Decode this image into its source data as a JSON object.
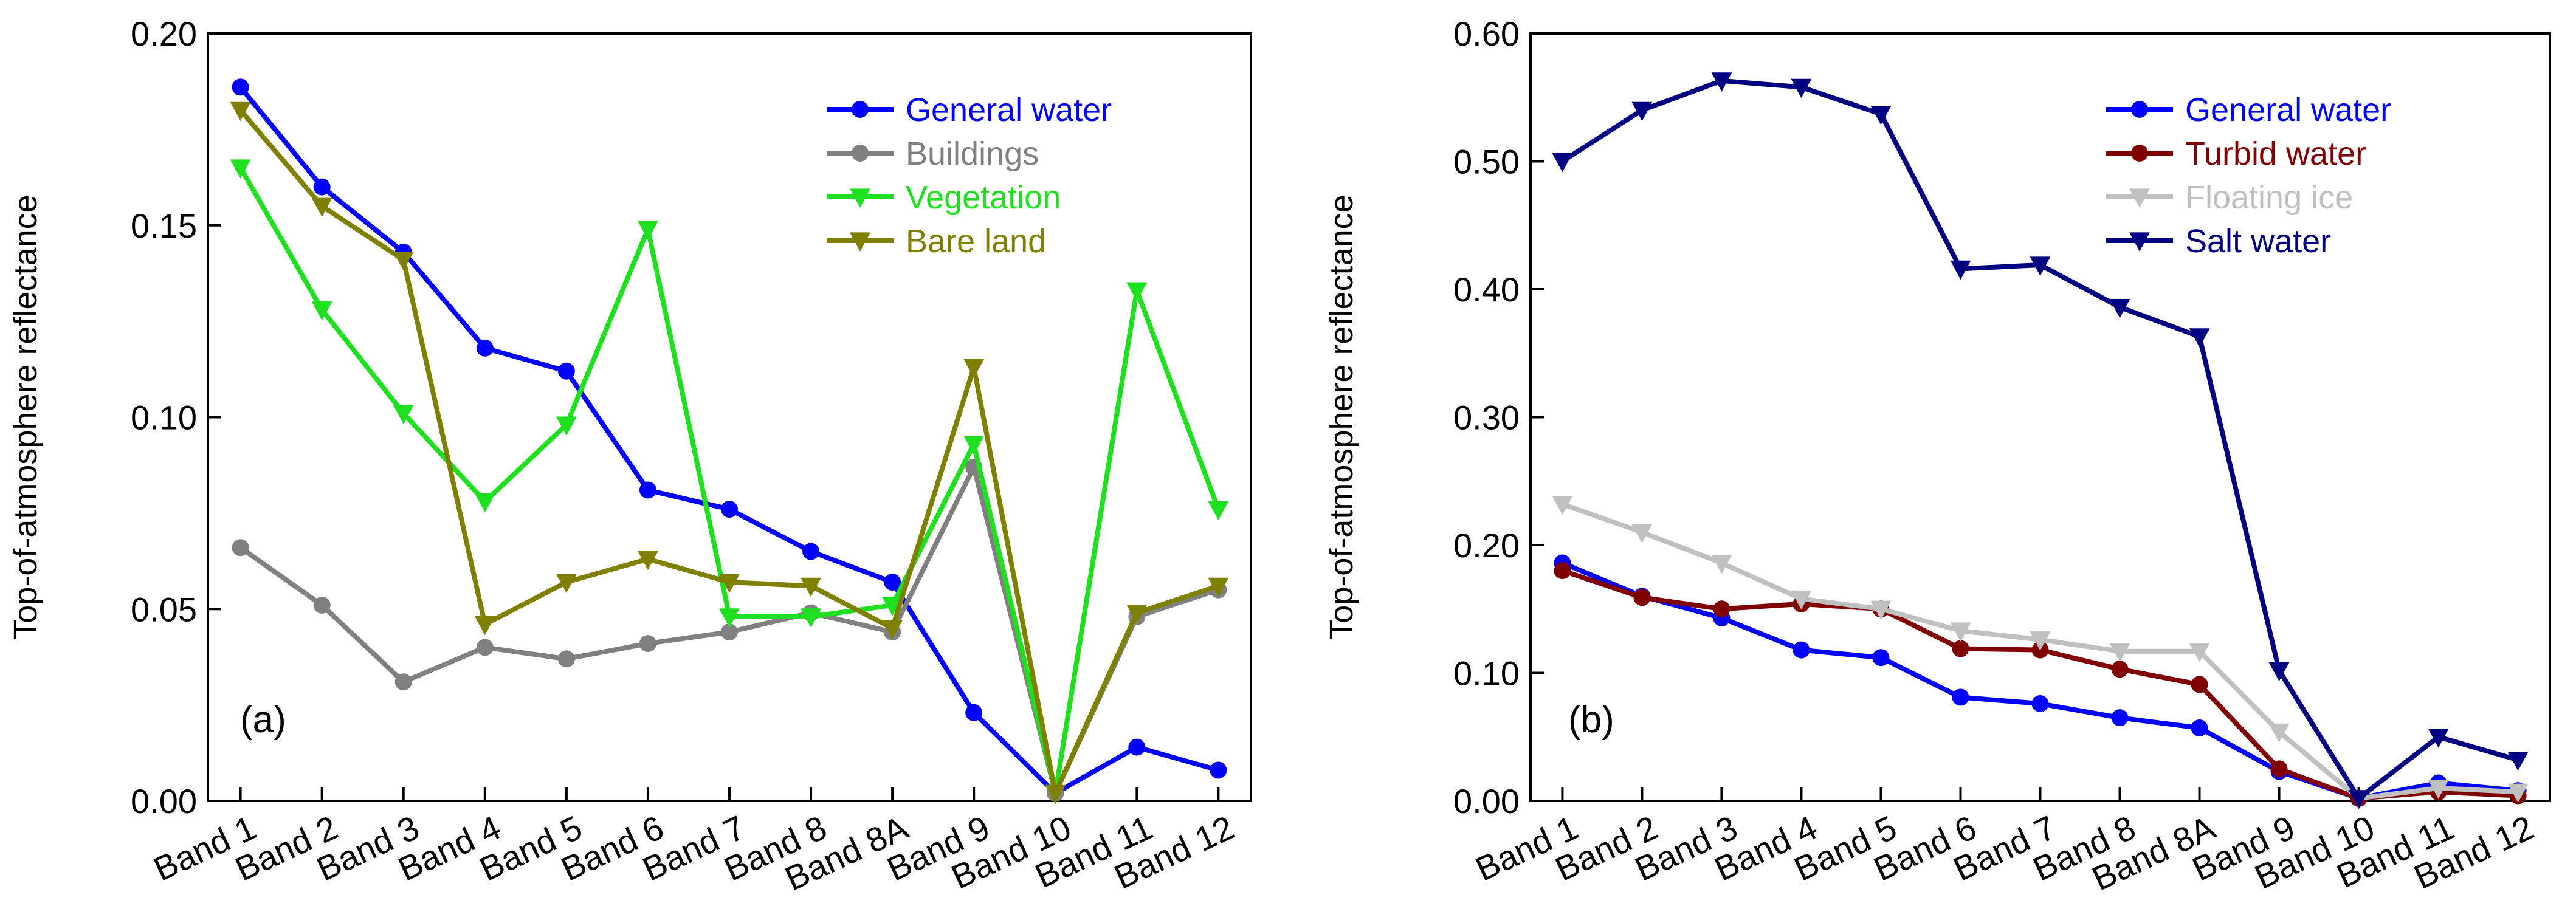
{
  "chart_data": [
    {
      "type": "line",
      "panel_label": "(a)",
      "title": "",
      "xlabel": "",
      "ylabel": "Top-of-atmosphere reflectance",
      "categories": [
        "Band 1",
        "Band 2",
        "Band 3",
        "Band 4",
        "Band 5",
        "Band 6",
        "Band 7",
        "Band 8",
        "Band 8A",
        "Band 9",
        "Band 10",
        "Band 11",
        "Band 12"
      ],
      "ylim": [
        0,
        0.2
      ],
      "yticks": [
        0,
        0.05,
        0.1,
        0.15,
        0.2
      ],
      "ytick_labels": [
        "0.00",
        "0.05",
        "0.10",
        "0.15",
        "0.20"
      ],
      "legend_position": "top-right",
      "series": [
        {
          "name": "General water",
          "color": "#0000ff",
          "marker": "circle",
          "values": [
            0.186,
            0.16,
            0.143,
            0.118,
            0.112,
            0.081,
            0.076,
            0.065,
            0.057,
            0.023,
            0.002,
            0.014,
            0.008
          ]
        },
        {
          "name": "Buildings",
          "color": "#808080",
          "marker": "circle",
          "values": [
            0.066,
            0.051,
            0.031,
            0.04,
            0.037,
            0.041,
            0.044,
            0.049,
            0.044,
            0.087,
            0.002,
            0.048,
            0.055
          ]
        },
        {
          "name": "Vegetation",
          "color": "#1ee01e",
          "marker": "triangle-down",
          "values": [
            0.165,
            0.128,
            0.101,
            0.078,
            0.098,
            0.149,
            0.048,
            0.048,
            0.051,
            0.093,
            0.002,
            0.133,
            0.076
          ]
        },
        {
          "name": "Bare land",
          "color": "#808000",
          "marker": "triangle-down",
          "values": [
            0.18,
            0.155,
            0.141,
            0.046,
            0.057,
            0.063,
            0.057,
            0.056,
            0.045,
            0.113,
            0.002,
            0.049,
            0.056
          ]
        }
      ]
    },
    {
      "type": "line",
      "panel_label": "(b)",
      "title": "",
      "xlabel": "",
      "ylabel": "Top-of-atmosphere reflectance",
      "categories": [
        "Band 1",
        "Band 2",
        "Band 3",
        "Band 4",
        "Band 5",
        "Band 6",
        "Band 7",
        "Band 8",
        "Band 8A",
        "Band 9",
        "Band 10",
        "Band 11",
        "Band 12"
      ],
      "ylim": [
        0,
        0.6
      ],
      "yticks": [
        0,
        0.1,
        0.2,
        0.3,
        0.4,
        0.5,
        0.6
      ],
      "ytick_labels": [
        "0.00",
        "0.10",
        "0.20",
        "0.30",
        "0.40",
        "0.50",
        "0.60"
      ],
      "legend_position": "top-right",
      "series": [
        {
          "name": "General water",
          "color": "#0000ff",
          "marker": "circle",
          "values": [
            0.186,
            0.16,
            0.143,
            0.118,
            0.112,
            0.081,
            0.076,
            0.065,
            0.057,
            0.023,
            0.002,
            0.014,
            0.008
          ]
        },
        {
          "name": "Turbid water",
          "color": "#800000",
          "marker": "circle",
          "values": [
            0.18,
            0.159,
            0.15,
            0.154,
            0.15,
            0.119,
            0.118,
            0.103,
            0.091,
            0.025,
            0.002,
            0.007,
            0.004
          ]
        },
        {
          "name": "Floating ice",
          "color": "#c0c0c0",
          "marker": "triangle-down",
          "values": [
            0.232,
            0.21,
            0.186,
            0.158,
            0.15,
            0.133,
            0.126,
            0.117,
            0.117,
            0.054,
            0.002,
            0.01,
            0.007
          ]
        },
        {
          "name": "Salt water",
          "color": "#000080",
          "marker": "triangle-down",
          "values": [
            0.5,
            0.54,
            0.563,
            0.558,
            0.537,
            0.416,
            0.419,
            0.386,
            0.363,
            0.102,
            0.002,
            0.05,
            0.032
          ]
        }
      ]
    }
  ]
}
